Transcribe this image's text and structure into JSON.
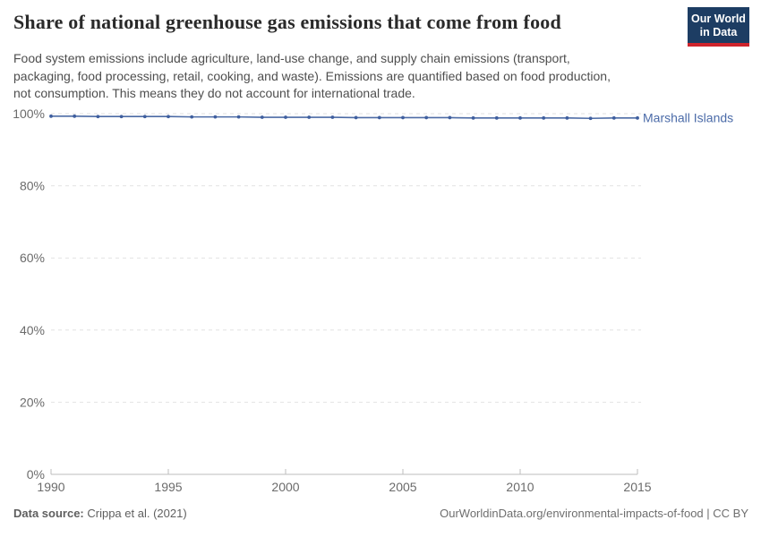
{
  "header": {
    "title": "Share of national greenhouse gas emissions that come from food",
    "subtitle_lines": [
      "Food system emissions include agriculture, land-use change, and supply chain emissions (transport,",
      "packaging, food processing, retail, cooking, and waste). Emissions are quantified based on food production,",
      "not consumption. This means they do not account for international trade."
    ],
    "logo": {
      "line1": "Our World",
      "line2": "in Data",
      "bg_color": "#1d3d63",
      "accent_color": "#cf242c"
    }
  },
  "chart_data": {
    "type": "line",
    "title": "Share of national greenhouse gas emissions that come from food",
    "xlabel": "",
    "ylabel": "",
    "xlim": [
      1990,
      2015
    ],
    "ylim": [
      0,
      100
    ],
    "x_ticks": [
      1990,
      1995,
      2000,
      2005,
      2010,
      2015
    ],
    "y_ticks": [
      0,
      20,
      40,
      60,
      80,
      100
    ],
    "y_tick_suffix": "%",
    "grid": "horizontal-dashed",
    "legend_position": "end-of-line-label",
    "colors": {
      "grid": "#e2e2e2",
      "axis": "#bdbdbd",
      "tick_label": "#6b6b6b"
    },
    "series": [
      {
        "name": "Marshall Islands",
        "color": "#4c6ba5",
        "marker_color": "#3f5f9f",
        "label_color": "#4b6ba8",
        "x": [
          1990,
          1991,
          1992,
          1993,
          1994,
          1995,
          1996,
          1997,
          1998,
          1999,
          2000,
          2001,
          2002,
          2003,
          2004,
          2005,
          2006,
          2007,
          2008,
          2009,
          2010,
          2011,
          2012,
          2013,
          2014,
          2015
        ],
        "values": [
          99.3,
          99.3,
          99.2,
          99.2,
          99.2,
          99.2,
          99.1,
          99.1,
          99.1,
          99.0,
          99.0,
          99.0,
          99.0,
          98.9,
          98.9,
          98.9,
          98.9,
          98.9,
          98.8,
          98.8,
          98.8,
          98.8,
          98.8,
          98.7,
          98.8,
          98.8
        ]
      }
    ]
  },
  "footer": {
    "source_label": "Data source:",
    "source_value": " Crippa et al. (2021)",
    "credit": "OurWorldinData.org/environmental-impacts-of-food | CC BY"
  }
}
